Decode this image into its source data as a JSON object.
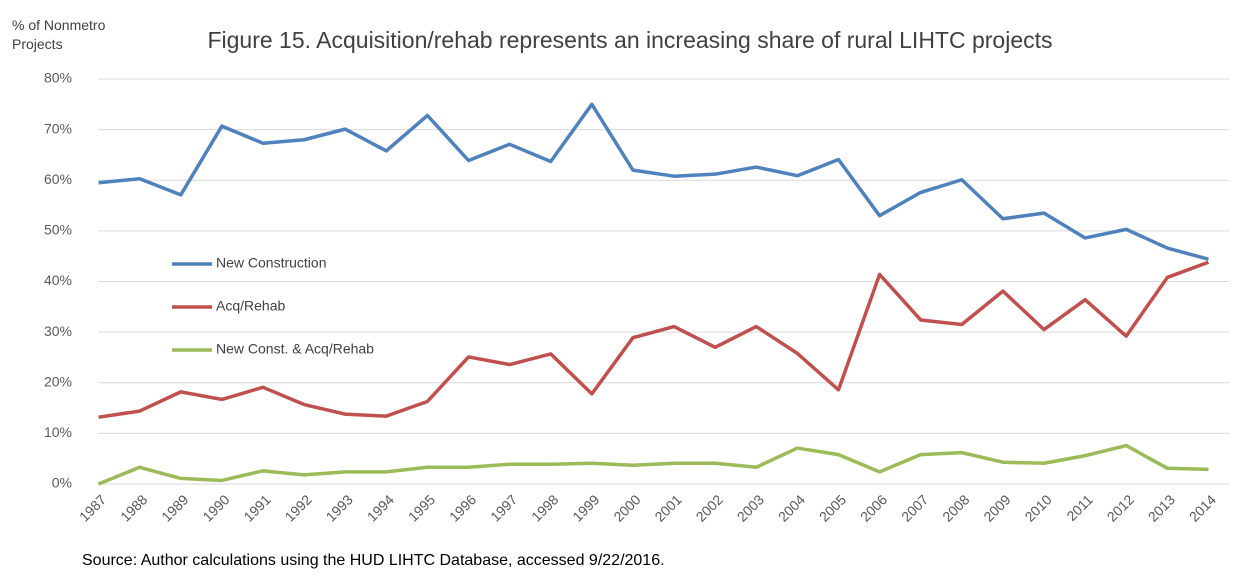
{
  "chart_data": {
    "type": "line",
    "title": "Figure 15. Acquisition/rehab represents an increasing share of rural LIHTC projects",
    "y_label": "% of Nonmetro Projects",
    "note": "Source: Author calculations using the HUD LIHTC Database, accessed 9/22/2016.",
    "categories": [
      "1987",
      "1988",
      "1989",
      "1990",
      "1991",
      "1992",
      "1993",
      "1994",
      "1995",
      "1996",
      "1997",
      "1998",
      "1999",
      "2000",
      "2001",
      "2002",
      "2003",
      "2004",
      "2005",
      "2006",
      "2007",
      "2008",
      "2009",
      "2010",
      "2011",
      "2012",
      "2013",
      "2014"
    ],
    "series": [
      {
        "name": "New Construction",
        "color": "#4f81bd",
        "values": [
          59.5,
          60.3,
          57.1,
          70.7,
          67.3,
          68.0,
          70.1,
          65.8,
          72.8,
          63.9,
          67.1,
          63.7,
          75.0,
          62.0,
          60.8,
          61.2,
          62.6,
          60.9,
          64.1,
          53.0,
          57.6,
          60.1,
          52.4,
          53.5,
          48.6,
          50.3,
          46.6,
          44.4
        ]
      },
      {
        "name": "Acq/Rehab",
        "color": "#c0504d",
        "values": [
          13.2,
          14.4,
          18.2,
          16.7,
          19.1,
          15.7,
          13.8,
          13.4,
          16.3,
          25.1,
          23.6,
          25.7,
          17.8,
          28.9,
          31.1,
          27.0,
          31.1,
          25.8,
          18.6,
          41.4,
          32.4,
          31.5,
          38.1,
          30.5,
          36.4,
          29.2,
          40.8,
          43.8
        ]
      },
      {
        "name": "New Const. & Acq/Rehab",
        "color": "#9bbb59",
        "values": [
          0,
          3.3,
          1.1,
          0.7,
          2.6,
          1.8,
          2.4,
          2.4,
          3.3,
          3.3,
          3.9,
          3.9,
          4.1,
          3.7,
          4.1,
          4.1,
          3.3,
          7.1,
          5.8,
          2.4,
          5.8,
          6.2,
          4.3,
          4.1,
          5.6,
          7.6,
          3.1,
          2.9
        ]
      }
    ],
    "ylim": [
      0,
      80
    ],
    "yticks": [
      {
        "value": 0,
        "label": "0%"
      },
      {
        "value": 10,
        "label": "10%"
      },
      {
        "value": 20,
        "label": "20%"
      },
      {
        "value": 30,
        "label": "30%"
      },
      {
        "value": 40,
        "label": "40%"
      },
      {
        "value": 50,
        "label": "50%"
      },
      {
        "value": 60,
        "label": "60%"
      },
      {
        "value": 70,
        "label": "70%"
      },
      {
        "value": 80,
        "label": "80%"
      }
    ],
    "grid": true,
    "legend": "left"
  }
}
